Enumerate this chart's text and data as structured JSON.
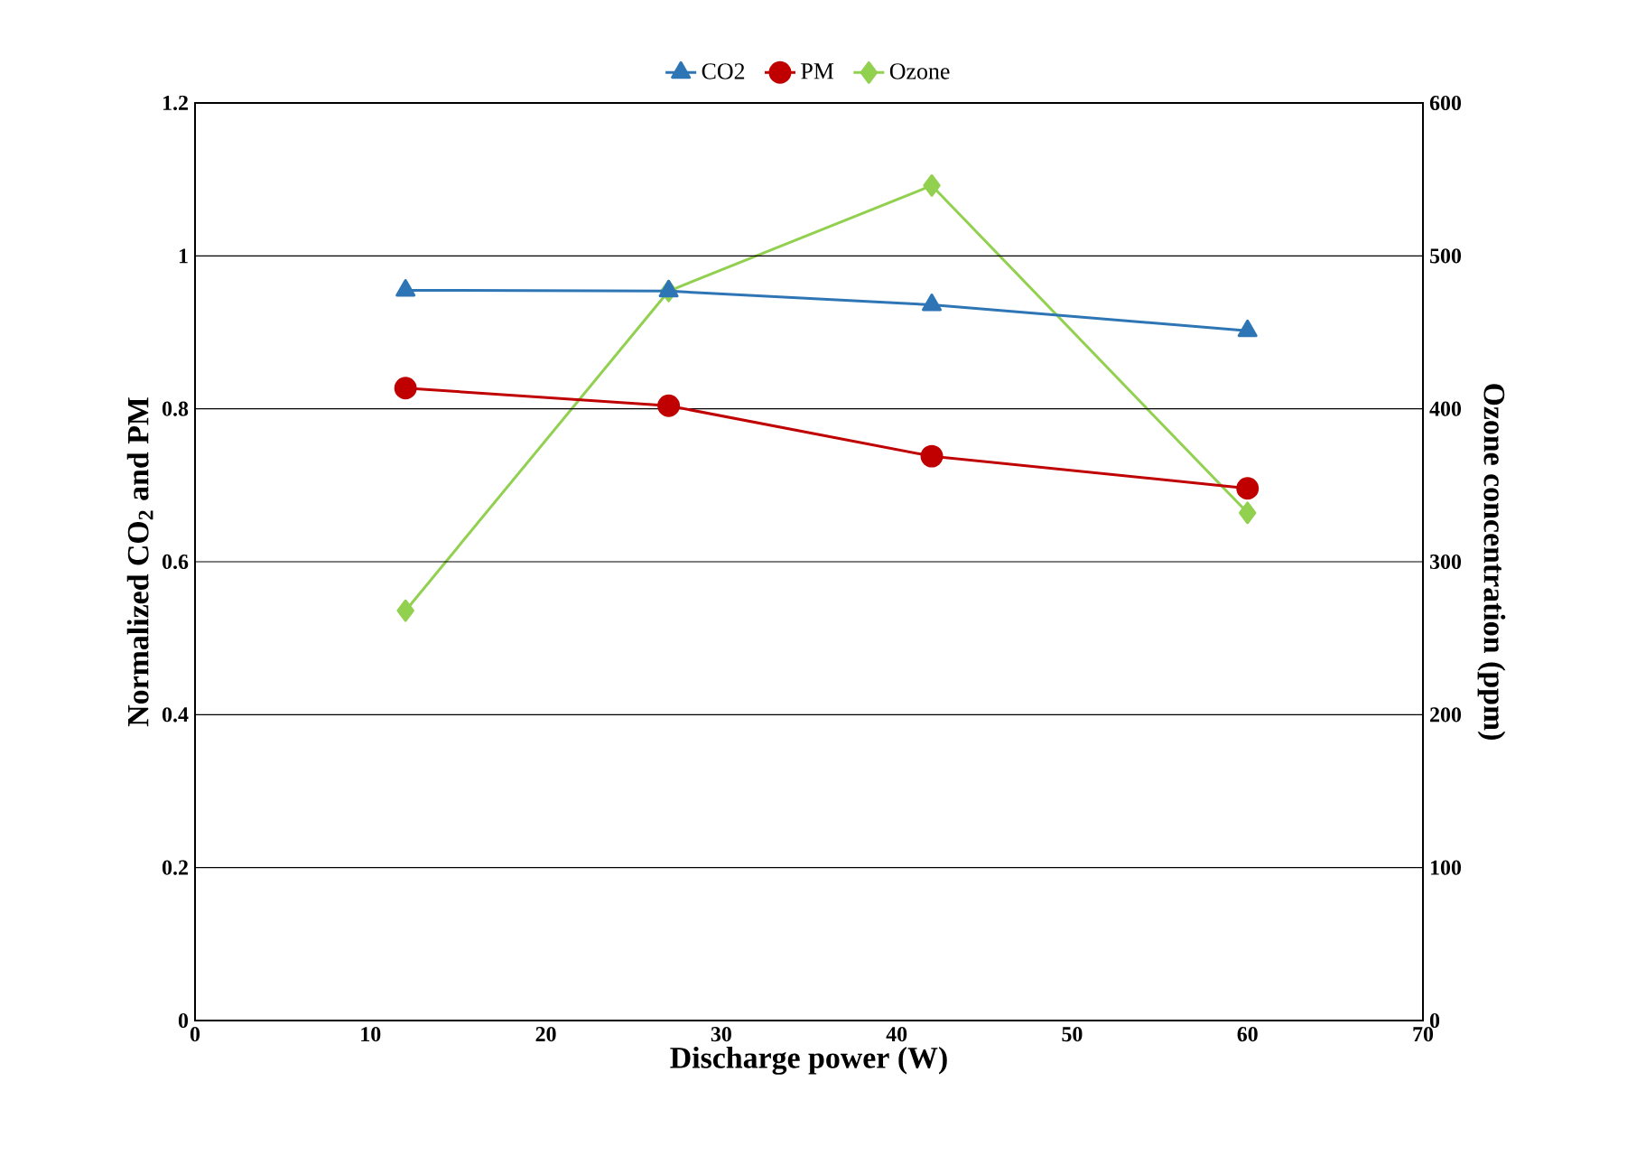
{
  "chart_data": {
    "type": "line",
    "xlabel": "Discharge power (W)",
    "ylabel": "Normalized CO$_{2}$ and PM",
    "y2label": "Ozone concentration (ppm)",
    "xlim": [
      0,
      70
    ],
    "xticks": [
      0,
      10,
      20,
      30,
      40,
      50,
      60,
      70
    ],
    "ylim": [
      0,
      1.2
    ],
    "yticks": [
      0,
      0.2,
      0.4,
      0.6,
      0.8,
      1,
      1.2
    ],
    "y2lim": [
      0,
      600
    ],
    "y2ticks": [
      0,
      100,
      200,
      300,
      400,
      500,
      600
    ],
    "grid": "y",
    "legend": "top",
    "line_style": "solid",
    "series": [
      {
        "name": "CO2",
        "color": "#2e75b6",
        "marker": "triangle",
        "x": [
          12,
          27,
          42,
          60
        ],
        "values": [
          0.955,
          0.954,
          0.936,
          0.902
        ]
      },
      {
        "name": "PM",
        "color": "#c00000",
        "marker": "circle",
        "x": [
          12,
          27,
          42,
          60
        ],
        "values": [
          0.827,
          0.804,
          0.738,
          0.696
        ]
      },
      {
        "name": "Ozone",
        "color": "#92d050",
        "marker": "diamond",
        "axis": "y2",
        "x": [
          12,
          27,
          42,
          60
        ],
        "values": [
          268,
          477,
          546,
          332
        ]
      }
    ]
  }
}
